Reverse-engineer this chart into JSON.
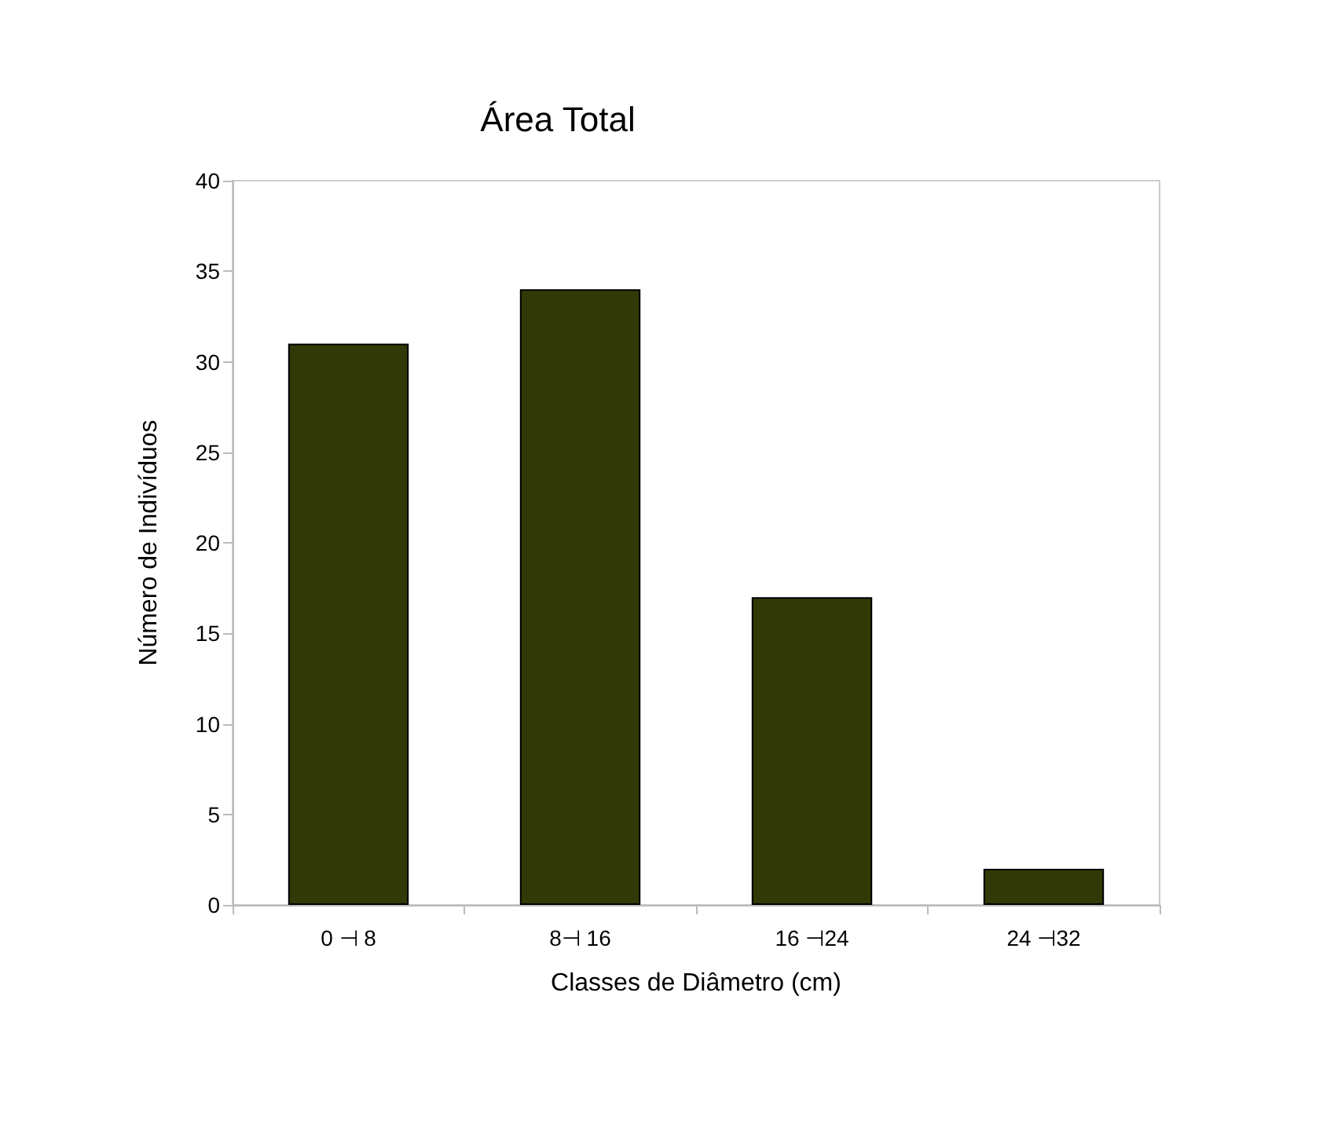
{
  "chart_data": {
    "type": "bar",
    "title": "Área Total",
    "xlabel": "Classes de Diâmetro (cm)",
    "ylabel": "Número de Indivíduos",
    "categories": [
      "0 ⊣ 8",
      "8⊣ 16",
      "16 ⊣24",
      "24 ⊣32"
    ],
    "values": [
      31,
      34,
      17,
      2
    ],
    "color": "#313a06",
    "ylim": [
      0,
      40
    ],
    "yticks": [
      0,
      5,
      10,
      15,
      20,
      25,
      30,
      35,
      40
    ],
    "grid": false
  }
}
